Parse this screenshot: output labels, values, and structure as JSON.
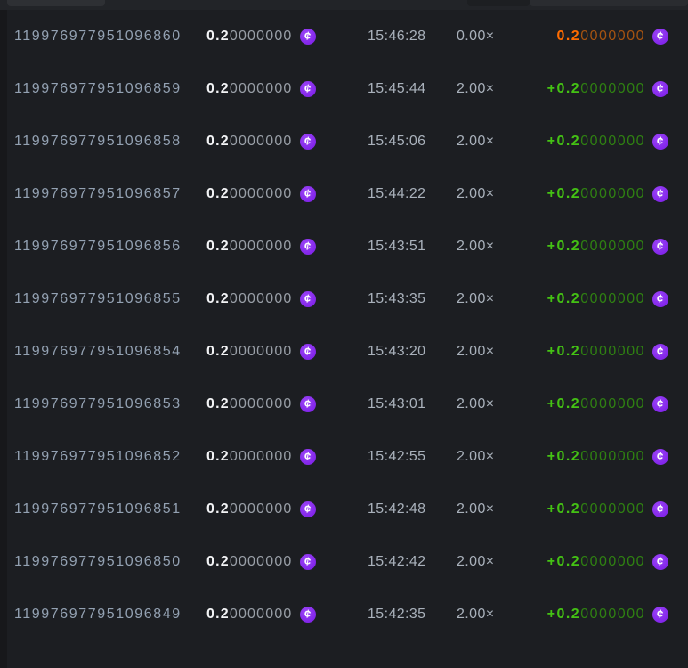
{
  "currency": {
    "glyph": "¢",
    "icon_name": "purple-cent-coin-icon",
    "coin_color": "#8a2af0"
  },
  "colors": {
    "id_text": "#93a1b2",
    "muted_text": "#a9b1bb",
    "amount_bright": "#f2f3f5",
    "amount_dim": "#999fa7",
    "win_bright": "#44c214",
    "win_dim": "#2f8012",
    "loss_bright": "#ff6c00",
    "loss_dim": "#a55311"
  },
  "bets": [
    {
      "id": "119976977951096860",
      "amount_bold": "0.2",
      "amount_rest": "0000000",
      "time": "15:46:28",
      "multiplier": "0.00×",
      "payout_bold": "0.2",
      "payout_rest": "0000000",
      "result": "loss"
    },
    {
      "id": "119976977951096859",
      "amount_bold": "0.2",
      "amount_rest": "0000000",
      "time": "15:45:44",
      "multiplier": "2.00×",
      "payout_bold": "+0.2",
      "payout_rest": "0000000",
      "result": "win"
    },
    {
      "id": "119976977951096858",
      "amount_bold": "0.2",
      "amount_rest": "0000000",
      "time": "15:45:06",
      "multiplier": "2.00×",
      "payout_bold": "+0.2",
      "payout_rest": "0000000",
      "result": "win"
    },
    {
      "id": "119976977951096857",
      "amount_bold": "0.2",
      "amount_rest": "0000000",
      "time": "15:44:22",
      "multiplier": "2.00×",
      "payout_bold": "+0.2",
      "payout_rest": "0000000",
      "result": "win"
    },
    {
      "id": "119976977951096856",
      "amount_bold": "0.2",
      "amount_rest": "0000000",
      "time": "15:43:51",
      "multiplier": "2.00×",
      "payout_bold": "+0.2",
      "payout_rest": "0000000",
      "result": "win"
    },
    {
      "id": "119976977951096855",
      "amount_bold": "0.2",
      "amount_rest": "0000000",
      "time": "15:43:35",
      "multiplier": "2.00×",
      "payout_bold": "+0.2",
      "payout_rest": "0000000",
      "result": "win"
    },
    {
      "id": "119976977951096854",
      "amount_bold": "0.2",
      "amount_rest": "0000000",
      "time": "15:43:20",
      "multiplier": "2.00×",
      "payout_bold": "+0.2",
      "payout_rest": "0000000",
      "result": "win"
    },
    {
      "id": "119976977951096853",
      "amount_bold": "0.2",
      "amount_rest": "0000000",
      "time": "15:43:01",
      "multiplier": "2.00×",
      "payout_bold": "+0.2",
      "payout_rest": "0000000",
      "result": "win"
    },
    {
      "id": "119976977951096852",
      "amount_bold": "0.2",
      "amount_rest": "0000000",
      "time": "15:42:55",
      "multiplier": "2.00×",
      "payout_bold": "+0.2",
      "payout_rest": "0000000",
      "result": "win"
    },
    {
      "id": "119976977951096851",
      "amount_bold": "0.2",
      "amount_rest": "0000000",
      "time": "15:42:48",
      "multiplier": "2.00×",
      "payout_bold": "+0.2",
      "payout_rest": "0000000",
      "result": "win"
    },
    {
      "id": "119976977951096850",
      "amount_bold": "0.2",
      "amount_rest": "0000000",
      "time": "15:42:42",
      "multiplier": "2.00×",
      "payout_bold": "+0.2",
      "payout_rest": "0000000",
      "result": "win"
    },
    {
      "id": "119976977951096849",
      "amount_bold": "0.2",
      "amount_rest": "0000000",
      "time": "15:42:35",
      "multiplier": "2.00×",
      "payout_bold": "+0.2",
      "payout_rest": "0000000",
      "result": "win"
    }
  ]
}
